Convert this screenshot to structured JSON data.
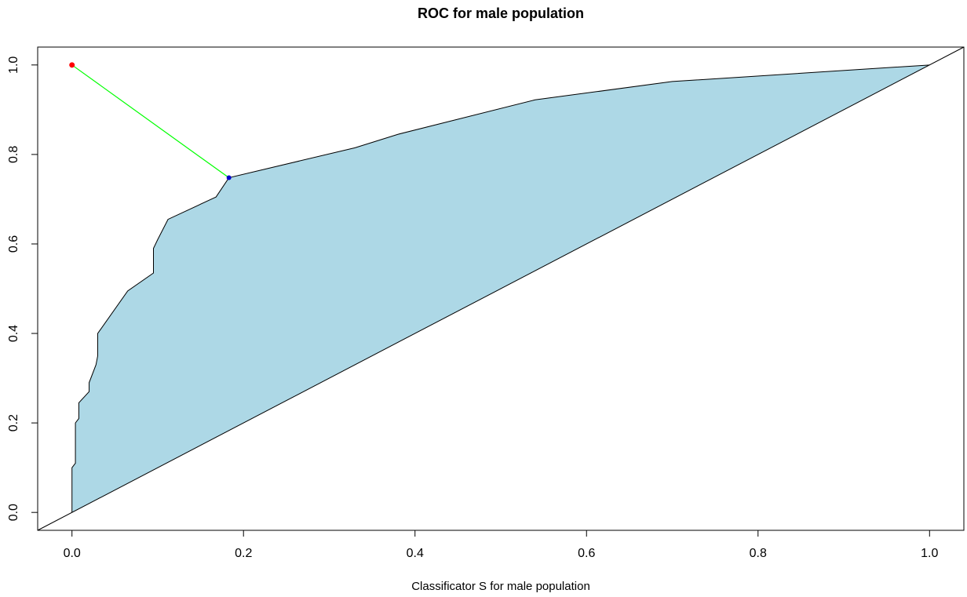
{
  "chart_data": {
    "type": "roc",
    "title": "ROC for male population",
    "x_label": "Classificator S for male population",
    "x": [
      0,
      0,
      0.004,
      0.004,
      0.008,
      0.008,
      0.02,
      0.02,
      0.028,
      0.03,
      0.03,
      0.065,
      0.095,
      0.095,
      0.1,
      0.112,
      0.168,
      0.183,
      0.33,
      0.38,
      0.54,
      0.7,
      1
    ],
    "y": [
      0,
      0.1,
      0.11,
      0.2,
      0.21,
      0.245,
      0.27,
      0.29,
      0.33,
      0.35,
      0.4,
      0.495,
      0.535,
      0.59,
      0.61,
      0.655,
      0.705,
      0.748,
      0.815,
      0.845,
      0.922,
      0.963,
      1
    ],
    "curve_color": "#000000",
    "fill_color": "#add8e6",
    "ideal_point": {
      "x": 0,
      "y": 1,
      "color": "#ff0000"
    },
    "optimal_point": {
      "x": 0.183,
      "y": 0.748,
      "color": "#0000cd"
    },
    "distance_color": "#00ff00",
    "xlim": [
      -0.04,
      1.04
    ],
    "ylim": [
      -0.04,
      1.04
    ],
    "xticks": [
      {
        "value": 0,
        "label": "0.0"
      },
      0.2,
      0.4,
      0.6,
      0.8,
      {
        "value": 1,
        "label": "1.0"
      }
    ],
    "yticks": [
      {
        "value": 0,
        "label": "0.0"
      },
      0.2,
      0.4,
      0.6,
      0.8,
      {
        "value": 1,
        "label": "1.0"
      }
    ]
  }
}
